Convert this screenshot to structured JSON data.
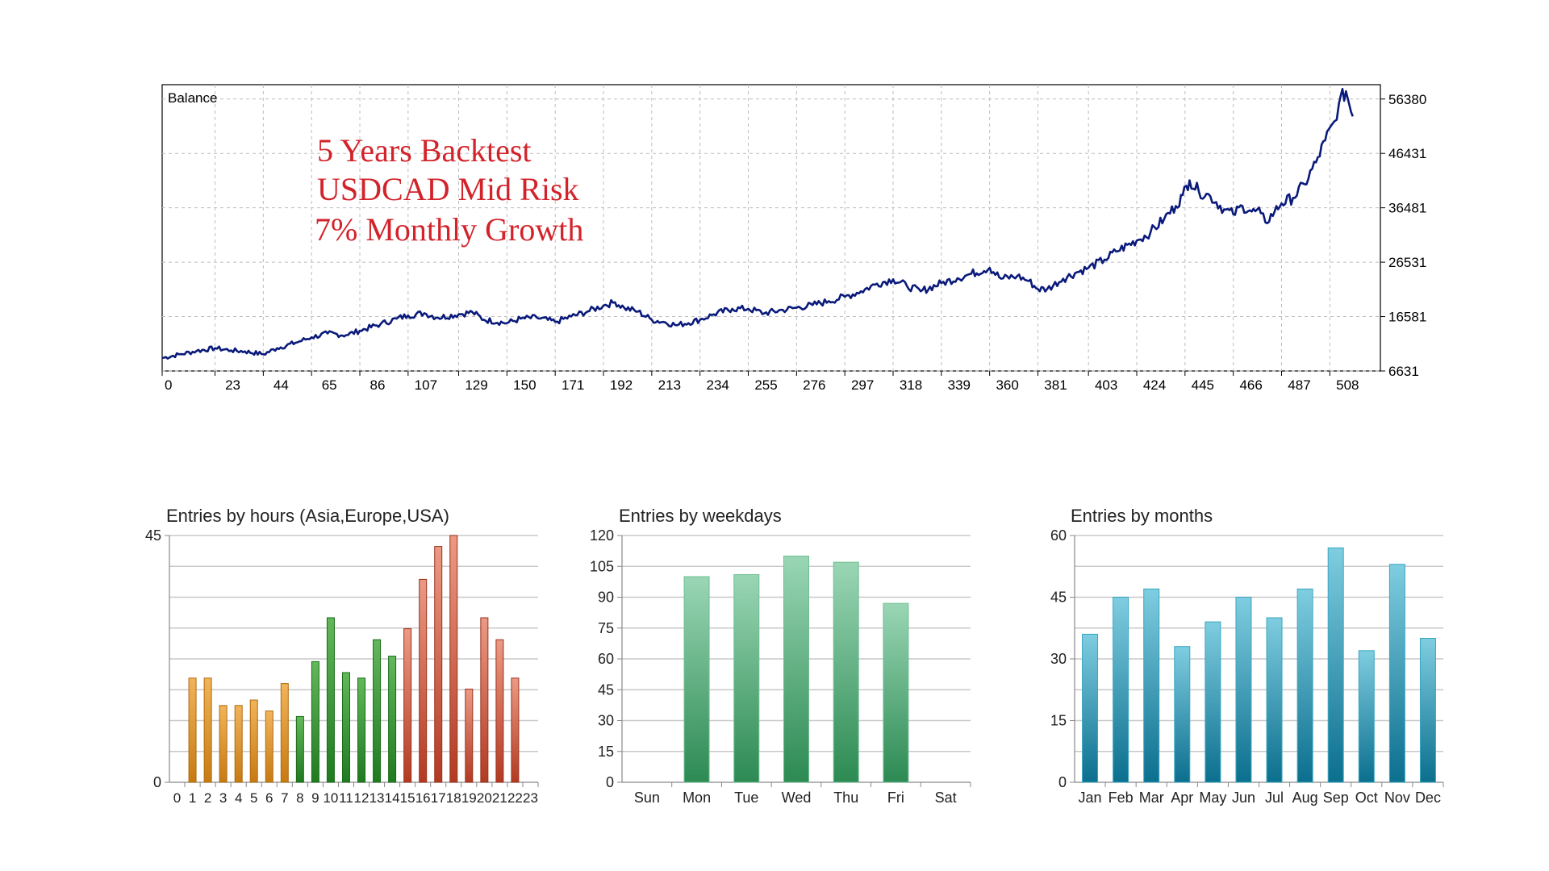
{
  "chart_data": [
    {
      "type": "line",
      "title": "Balance",
      "annotation": [
        "5 Years Backtest",
        "USDCAD Mid Risk",
        "7% Monthly Growth"
      ],
      "x_ticks": [
        0,
        23,
        44,
        65,
        86,
        107,
        129,
        150,
        171,
        192,
        213,
        234,
        255,
        276,
        297,
        318,
        339,
        360,
        381,
        403,
        424,
        445,
        466,
        487,
        508
      ],
      "y_ticks": [
        6631,
        16581,
        26531,
        36481,
        46431,
        56380
      ],
      "xlim": [
        0,
        530
      ],
      "ylim": [
        6631,
        59000
      ],
      "grid": true,
      "color": "#0a1a7a",
      "series": [
        {
          "x": [
            0,
            8,
            15,
            23,
            30,
            36,
            44,
            50,
            58,
            65,
            72,
            80,
            86,
            95,
            102,
            107,
            114,
            120,
            129,
            135,
            140,
            150,
            156,
            163,
            171,
            178,
            185,
            192,
            197,
            201,
            207,
            213,
            218,
            224,
            234,
            240,
            248,
            255,
            262,
            270,
            276,
            283,
            290,
            297,
            304,
            311,
            318,
            324,
            330,
            339,
            346,
            352,
            360,
            365,
            372,
            377,
            381,
            385,
            392,
            398,
            403,
            410,
            415,
            424,
            430,
            436,
            441,
            444,
            447,
            451,
            456,
            462,
            466,
            470,
            474,
            478,
            480,
            484,
            487,
            492,
            497,
            502,
            506,
            510,
            512,
            515,
            518
          ],
          "y": [
            9000,
            9700,
            10300,
            10800,
            10400,
            10200,
            9700,
            10800,
            11800,
            12800,
            13500,
            13200,
            14000,
            15200,
            16200,
            16800,
            17200,
            16400,
            17000,
            17400,
            16000,
            15400,
            16200,
            16400,
            15600,
            16600,
            17500,
            18600,
            19200,
            18200,
            17500,
            16000,
            15600,
            15000,
            16000,
            17000,
            18000,
            18000,
            17200,
            17800,
            18200,
            18700,
            19400,
            20200,
            21200,
            22600,
            23400,
            22200,
            21200,
            22700,
            23600,
            24400,
            25500,
            23500,
            24000,
            23100,
            21600,
            21600,
            23500,
            24700,
            25500,
            27000,
            28500,
            30500,
            32000,
            34500,
            36800,
            38800,
            41500,
            39500,
            38600,
            36200,
            35300,
            36800,
            35800,
            35500,
            33800,
            35800,
            37300,
            38300,
            40800,
            44800,
            48800,
            52300,
            55600,
            57800,
            53200
          ]
        }
      ]
    },
    {
      "type": "bar",
      "title": "Entries by hours (Asia,Europe,USA)",
      "categories": [
        "0",
        "1",
        "2",
        "3",
        "4",
        "5",
        "6",
        "7",
        "8",
        "9",
        "10",
        "11",
        "12",
        "13",
        "14",
        "15",
        "16",
        "17",
        "18",
        "19",
        "20",
        "21",
        "22",
        "23"
      ],
      "values": [
        0,
        19,
        19,
        14,
        14,
        15,
        13,
        18,
        12,
        22,
        30,
        20,
        19,
        26,
        23,
        28,
        37,
        43,
        45,
        17,
        30,
        26,
        19,
        0
      ],
      "ylim": [
        0,
        45
      ],
      "y_ticks": [
        0,
        45
      ],
      "grid": true,
      "colors": {
        "Asia": "#e39a2d",
        "Europe": "#3a9a3a",
        "USA": "#d9634e"
      }
    },
    {
      "type": "bar",
      "title": "Entries by weekdays",
      "categories": [
        "Sun",
        "Mon",
        "Tue",
        "Wed",
        "Thu",
        "Fri",
        "Sat"
      ],
      "values": [
        0,
        100,
        101,
        110,
        107,
        87,
        0
      ],
      "ylim": [
        0,
        120
      ],
      "y_ticks": [
        0,
        15,
        30,
        45,
        60,
        75,
        90,
        105,
        120
      ],
      "grid": true,
      "color": "#4fb37a"
    },
    {
      "type": "bar",
      "title": "Entries by months",
      "categories": [
        "Jan",
        "Feb",
        "Mar",
        "Apr",
        "May",
        "Jun",
        "Jul",
        "Aug",
        "Sep",
        "Oct",
        "Nov",
        "Dec"
      ],
      "values": [
        36,
        45,
        47,
        33,
        39,
        45,
        40,
        47,
        57,
        32,
        53,
        35
      ],
      "ylim": [
        0,
        60
      ],
      "y_ticks": [
        0,
        15,
        30,
        45,
        60
      ],
      "grid": true,
      "color": "#2a99b5"
    }
  ]
}
